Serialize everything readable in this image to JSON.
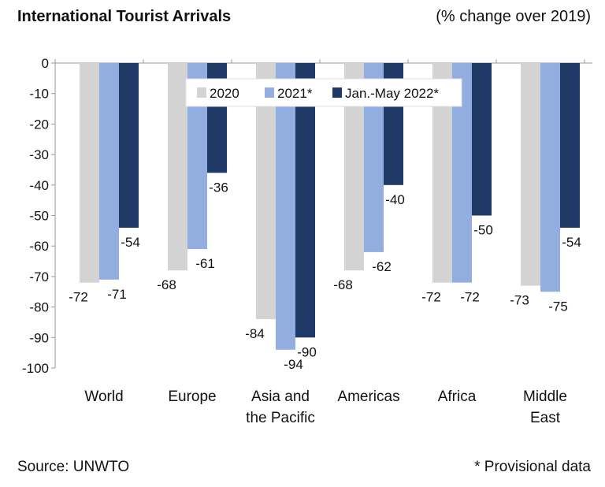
{
  "header": {
    "title": "International Tourist Arrivals",
    "subtitle": "(% change over 2019)"
  },
  "footer": {
    "source": "Source: UNWTO",
    "note": "* Provisional data"
  },
  "colors": {
    "2020": "#d3d3d3",
    "2021": "#92aee0",
    "2022": "#1f3a66"
  },
  "chart_data": {
    "type": "bar",
    "categories": [
      [
        "World"
      ],
      [
        "Europe"
      ],
      [
        "Asia and",
        "the Pacific"
      ],
      [
        "Americas"
      ],
      [
        "Africa"
      ],
      [
        "Middle",
        "East"
      ]
    ],
    "series": [
      {
        "name": "2020",
        "values": [
          -72,
          -68,
          -84,
          -68,
          -72,
          -73
        ]
      },
      {
        "name": "2021*",
        "values": [
          -71,
          -61,
          -94,
          -62,
          -72,
          -75
        ]
      },
      {
        "name": "Jan.-May 2022*",
        "values": [
          -54,
          -36,
          -90,
          -40,
          -50,
          -54
        ]
      }
    ],
    "yticks": [
      0,
      -10,
      -20,
      -30,
      -40,
      -50,
      -60,
      -70,
      -80,
      -90,
      -100
    ],
    "ylim": [
      -100,
      0
    ],
    "grid": false,
    "legend": "top-center"
  }
}
